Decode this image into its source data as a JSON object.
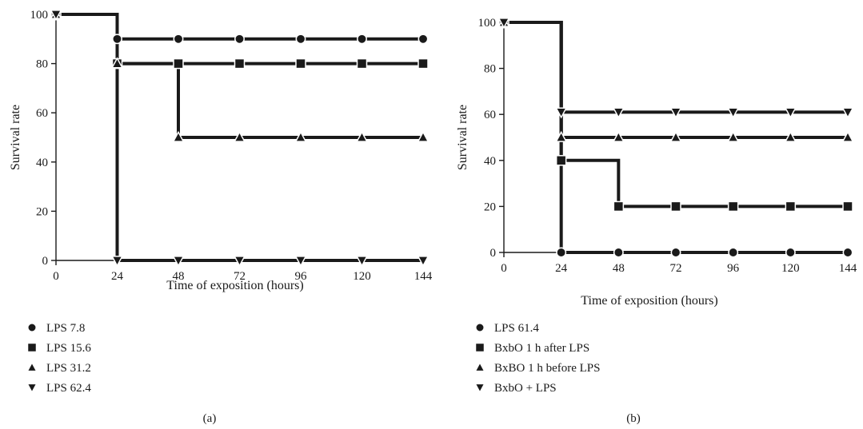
{
  "chart_data": [
    {
      "type": "line",
      "panel_label": "(a)",
      "xlabel": "Time of exposition (hours)",
      "ylabel": "Survival rate",
      "xlim": [
        0,
        144
      ],
      "ylim": [
        0,
        100
      ],
      "x_ticks": [
        0,
        24,
        48,
        72,
        96,
        120,
        144
      ],
      "y_ticks": [
        0,
        20,
        40,
        60,
        80,
        100
      ],
      "grid": false,
      "legend_position": "bottom-left",
      "series": [
        {
          "name": "LPS 7.8",
          "marker": "circle",
          "x": [
            0,
            24,
            48,
            72,
            96,
            120,
            144
          ],
          "values": [
            100,
            90,
            90,
            90,
            90,
            90,
            90
          ]
        },
        {
          "name": "LPS 15.6",
          "marker": "square",
          "x": [
            0,
            24,
            48,
            72,
            96,
            120,
            144
          ],
          "values": [
            100,
            80,
            80,
            80,
            80,
            80,
            80
          ]
        },
        {
          "name": "LPS 31.2",
          "marker": "triangle-up",
          "x": [
            0,
            24,
            48,
            72,
            96,
            120,
            144
          ],
          "values": [
            100,
            80,
            50,
            50,
            50,
            50,
            50
          ]
        },
        {
          "name": "LPS 62.4",
          "marker": "triangle-down",
          "x": [
            0,
            24,
            48,
            72,
            96,
            120,
            144
          ],
          "values": [
            100,
            0,
            0,
            0,
            0,
            0,
            0
          ]
        }
      ]
    },
    {
      "type": "line",
      "panel_label": "(b)",
      "xlabel": "Time of exposition (hours)",
      "ylabel": "Survival rate",
      "xlim": [
        0,
        144
      ],
      "ylim": [
        0,
        100
      ],
      "x_ticks": [
        0,
        24,
        48,
        72,
        96,
        120,
        144
      ],
      "y_ticks": [
        0,
        20,
        40,
        60,
        80,
        100
      ],
      "grid": false,
      "legend_position": "bottom-left",
      "series": [
        {
          "name": "LPS 61.4",
          "marker": "circle",
          "x": [
            0,
            24,
            48,
            72,
            96,
            120,
            144
          ],
          "values": [
            100,
            0,
            0,
            0,
            0,
            0,
            0
          ]
        },
        {
          "name": "BxbO 1 h after LPS",
          "marker": "square",
          "x": [
            0,
            24,
            48,
            72,
            96,
            120,
            144
          ],
          "values": [
            100,
            40,
            20,
            20,
            20,
            20,
            20
          ]
        },
        {
          "name": "BxBO 1 h before LPS",
          "marker": "triangle-up",
          "x": [
            0,
            24,
            48,
            72,
            96,
            120,
            144
          ],
          "values": [
            100,
            50,
            50,
            50,
            50,
            50,
            50
          ]
        },
        {
          "name": "BxbO + LPS",
          "marker": "triangle-down",
          "x": [
            0,
            24,
            48,
            72,
            96,
            120,
            144
          ],
          "values": [
            100,
            61,
            61,
            61,
            61,
            61,
            61
          ]
        }
      ]
    }
  ]
}
